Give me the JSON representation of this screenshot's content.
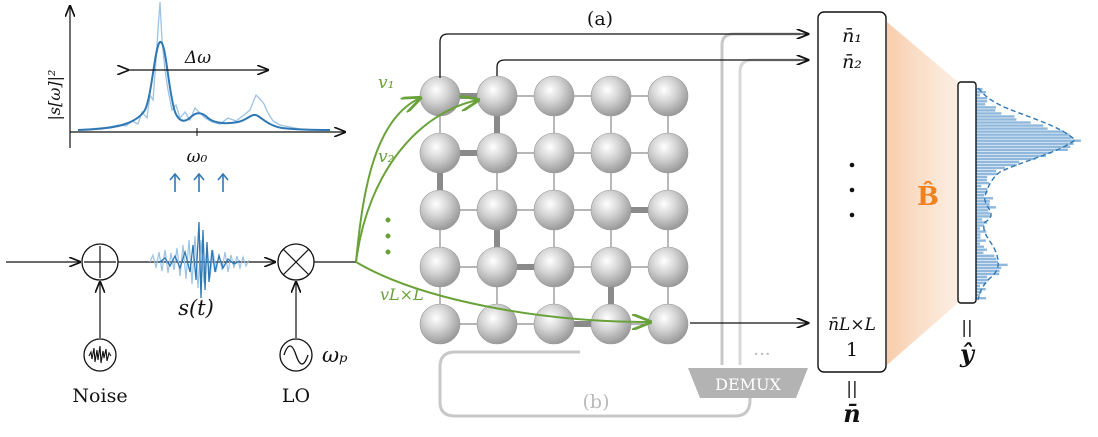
{
  "labels": {
    "panel_a": "(a)",
    "panel_b": "(b)",
    "spectrum_ylabel": "|s[ω]|²",
    "spectrum_xtick": "ω₀",
    "bandwidth": "Δω",
    "signal": "s(t)",
    "noise": "Noise",
    "lo": "LO",
    "lo_freq": "ωₚ",
    "demux": "DEMUX",
    "demux_dots": "···",
    "v1": "v₁",
    "v2": "v₂",
    "vLL": "vL×L",
    "n1": "n̄₁",
    "n2": "n̄₂",
    "nLL": "n̄L×L",
    "one": "1",
    "vertical_dots": "⋮",
    "n_vec": "n̄",
    "equals": "||",
    "b_hat": "B̂",
    "y_hat": "ŷ"
  },
  "colors": {
    "signal_blue": "#2f78b4",
    "signal_light": "#9cc3e4",
    "drive_green": "#6aa23a",
    "readout_orange": "#f7c7a2",
    "node_grey": "#c9c9c9",
    "path_grey": "#bdbdbd"
  },
  "lattice": {
    "rows": 5,
    "cols": 5
  }
}
